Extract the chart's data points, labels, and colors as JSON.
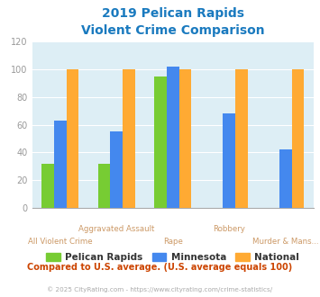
{
  "title_line1": "2019 Pelican Rapids",
  "title_line2": "Violent Crime Comparison",
  "title_color": "#1a7abf",
  "categories": [
    "All Violent Crime",
    "Aggravated Assault",
    "Rape",
    "Robbery",
    "Murder & Mans..."
  ],
  "series": {
    "Pelican Rapids": [
      32,
      32,
      95,
      0,
      0
    ],
    "Minnesota": [
      63,
      55,
      102,
      68,
      42
    ],
    "National": [
      100,
      100,
      100,
      100,
      100
    ]
  },
  "colors": {
    "Pelican Rapids": "#77cc33",
    "Minnesota": "#4488ee",
    "National": "#ffaa33"
  },
  "ylim": [
    0,
    120
  ],
  "yticks": [
    0,
    20,
    40,
    60,
    80,
    100,
    120
  ],
  "plot_bg": "#ddeef5",
  "grid_color": "#ffffff",
  "footer_text": "Compared to U.S. average. (U.S. average equals 100)",
  "footer_color": "#cc4400",
  "credit_text": "© 2025 CityRating.com - https://www.cityrating.com/crime-statistics/",
  "credit_color": "#aaaaaa",
  "bar_width": 0.22,
  "cat_labels_top": [
    "",
    "Aggravated Assault",
    "",
    "Robbery",
    ""
  ],
  "cat_labels_bot": [
    "All Violent Crime",
    "",
    "Rape",
    "",
    "Murder & Mans..."
  ],
  "label_color": "#cc9966"
}
